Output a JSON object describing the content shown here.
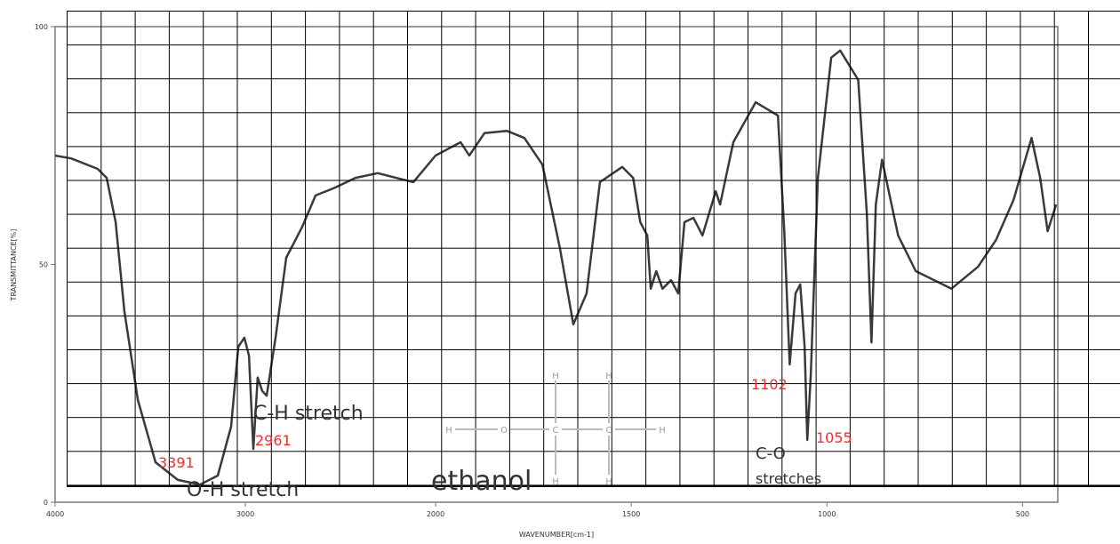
{
  "chart_data": {
    "type": "line",
    "xlabel": "WAVENUMBER[cm-1]",
    "ylabel": "TRANSMITTANCE[%]",
    "xlim": [
      4000,
      410
    ],
    "xbreak": 2000,
    "ylim": [
      0,
      100
    ],
    "xticks": [
      4000,
      3000,
      2000,
      1500,
      1000,
      500
    ],
    "yticks": [
      0,
      50,
      100
    ],
    "color": "#3a3a3a",
    "x": [
      4000,
      3916,
      3776,
      3729,
      3682,
      3636,
      3565,
      3472,
      3355,
      3238,
      3145,
      3075,
      3037,
      3005,
      2981,
      2958,
      2935,
      2911,
      2888,
      2841,
      2785,
      2701,
      2631,
      2537,
      2421,
      2304,
      2117,
      2000,
      1936,
      1914,
      1875,
      1818,
      1773,
      1727,
      1682,
      1648,
      1614,
      1580,
      1523,
      1495,
      1477,
      1459,
      1450,
      1436,
      1420,
      1398,
      1380,
      1364,
      1341,
      1318,
      1284,
      1273,
      1239,
      1182,
      1125,
      1109,
      1095,
      1080,
      1068,
      1057,
      1050,
      1041,
      1023,
      989,
      966,
      920,
      898,
      886,
      875,
      859,
      818,
      773,
      682,
      614,
      568,
      523,
      477,
      455,
      436,
      414
    ],
    "values": [
      72.9,
      72.3,
      70.1,
      68.2,
      58.9,
      40.2,
      21.5,
      8.4,
      4.7,
      3.7,
      5.6,
      15.9,
      32.7,
      34.6,
      30.8,
      11.2,
      26.2,
      23.4,
      22.4,
      34.6,
      51.4,
      57.9,
      64.5,
      66.0,
      68.2,
      69.2,
      67.3,
      72.9,
      75.7,
      72.9,
      77.6,
      78.1,
      76.6,
      71.0,
      53.3,
      37.4,
      43.9,
      67.3,
      70.5,
      68.2,
      58.9,
      56.1,
      44.9,
      48.6,
      44.9,
      46.7,
      43.9,
      58.9,
      59.8,
      56.1,
      65.4,
      62.6,
      75.7,
      84.1,
      81.3,
      57.0,
      29.0,
      43.9,
      45.8,
      32.7,
      13.1,
      27.1,
      68.2,
      93.5,
      95.0,
      88.8,
      60.7,
      33.6,
      62.6,
      72.0,
      56.1,
      48.6,
      44.9,
      49.5,
      55.1,
      63.6,
      76.6,
      68.2,
      57.0,
      62.6
    ],
    "annotations": [
      {
        "text": "3391",
        "color": "#ff2a2a"
      },
      {
        "text": "O-H stretch",
        "color": "#333333"
      },
      {
        "text": "C-H stretch",
        "color": "#333333"
      },
      {
        "text": "2961",
        "color": "#ff2a2a"
      },
      {
        "text": "ethanol",
        "color": "#333333"
      },
      {
        "text": "1102",
        "color": "#ff2a2a"
      },
      {
        "text": "1055",
        "color": "#ff2a2a"
      },
      {
        "text": "C-O",
        "color": "#333333"
      },
      {
        "text": "stretches",
        "color": "#333333"
      }
    ],
    "structure": [
      "H",
      "O",
      "C",
      "C",
      "H",
      "H",
      "H",
      "H",
      "H"
    ]
  }
}
